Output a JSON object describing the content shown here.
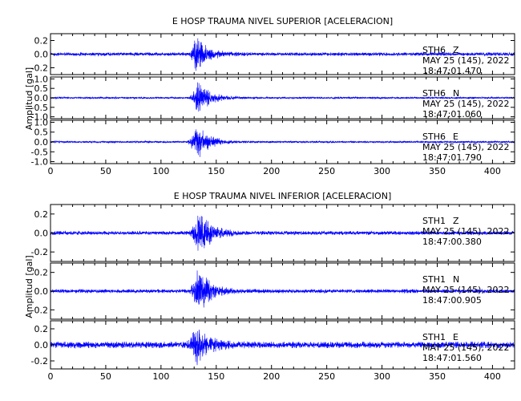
{
  "chart_data": [
    {
      "type": "line",
      "title": "E HOSP TRAUMA NIVEL SUPERIOR [ACELERACION]",
      "ylabel": "Amplitud  [gal]",
      "xlabel": "",
      "xlim": [
        0,
        420
      ],
      "x_ticks": [
        "0",
        "50",
        "100",
        "150",
        "200",
        "250",
        "300",
        "350",
        "400"
      ],
      "grid": false,
      "line_color": "#0000ff",
      "panels": [
        {
          "station": "STH6",
          "component": "Z",
          "date": "MAY 25 (145), 2022",
          "time": "18:47:01.470",
          "ylim": [
            -0.3,
            0.3
          ],
          "y_ticks": [
            "0.2",
            "0.0",
            "-0.2"
          ],
          "noise_amp": 0.025,
          "peak_amp": 0.28,
          "event_onset": 125,
          "peak_time": 132
        },
        {
          "station": "STH6",
          "component": "N",
          "date": "MAY 25 (145), 2022",
          "time": "18:47:01.060",
          "ylim": [
            -1.1,
            1.1
          ],
          "y_ticks": [
            "1.0",
            "0.5",
            "0.0",
            "-0.5",
            "-1.0"
          ],
          "noise_amp": 0.05,
          "peak_amp": 0.95,
          "event_onset": 125,
          "peak_time": 134
        },
        {
          "station": "STH6",
          "component": "E",
          "date": "MAY 25 (145), 2022",
          "time": "18:47:01.790",
          "ylim": [
            -1.1,
            1.1
          ],
          "y_ticks": [
            "1.0",
            "0.5",
            "0.0",
            "-0.5",
            "-1.0"
          ],
          "noise_amp": 0.05,
          "peak_amp": 0.95,
          "event_onset": 123,
          "peak_time": 133
        }
      ]
    },
    {
      "type": "line",
      "title": "E HOSP TRAUMA NIVEL INFERIOR [ACELERACION]",
      "ylabel": "Amplitud  [gal]",
      "xlabel": "",
      "xlim": [
        0,
        420
      ],
      "x_ticks": [
        "0",
        "50",
        "100",
        "150",
        "200",
        "250",
        "300",
        "350",
        "400"
      ],
      "grid": false,
      "line_color": "#0000ff",
      "panels": [
        {
          "station": "STH1",
          "component": "Z",
          "date": "MAY 25 (145), 2022",
          "time": "18:47:00.380",
          "ylim": [
            -0.3,
            0.3
          ],
          "y_ticks": [
            "0.2",
            "0.0",
            "-0.2"
          ],
          "noise_amp": 0.02,
          "peak_amp": 0.27,
          "event_onset": 125,
          "peak_time": 135
        },
        {
          "station": "STH1",
          "component": "N",
          "date": "MAY 25 (145), 2022",
          "time": "18:47:00.905",
          "ylim": [
            -0.3,
            0.3
          ],
          "y_ticks": [
            "0.2",
            "0.0",
            "-0.2"
          ],
          "noise_amp": 0.02,
          "peak_amp": 0.27,
          "event_onset": 125,
          "peak_time": 134
        },
        {
          "station": "STH1",
          "component": "E",
          "date": "MAY 25 (145), 2022",
          "time": "18:47:01.560",
          "ylim": [
            -0.3,
            0.3
          ],
          "y_ticks": [
            "0.2",
            "0.0",
            "-0.2"
          ],
          "noise_amp": 0.04,
          "peak_amp": 0.26,
          "event_onset": 122,
          "peak_time": 133
        }
      ]
    }
  ]
}
